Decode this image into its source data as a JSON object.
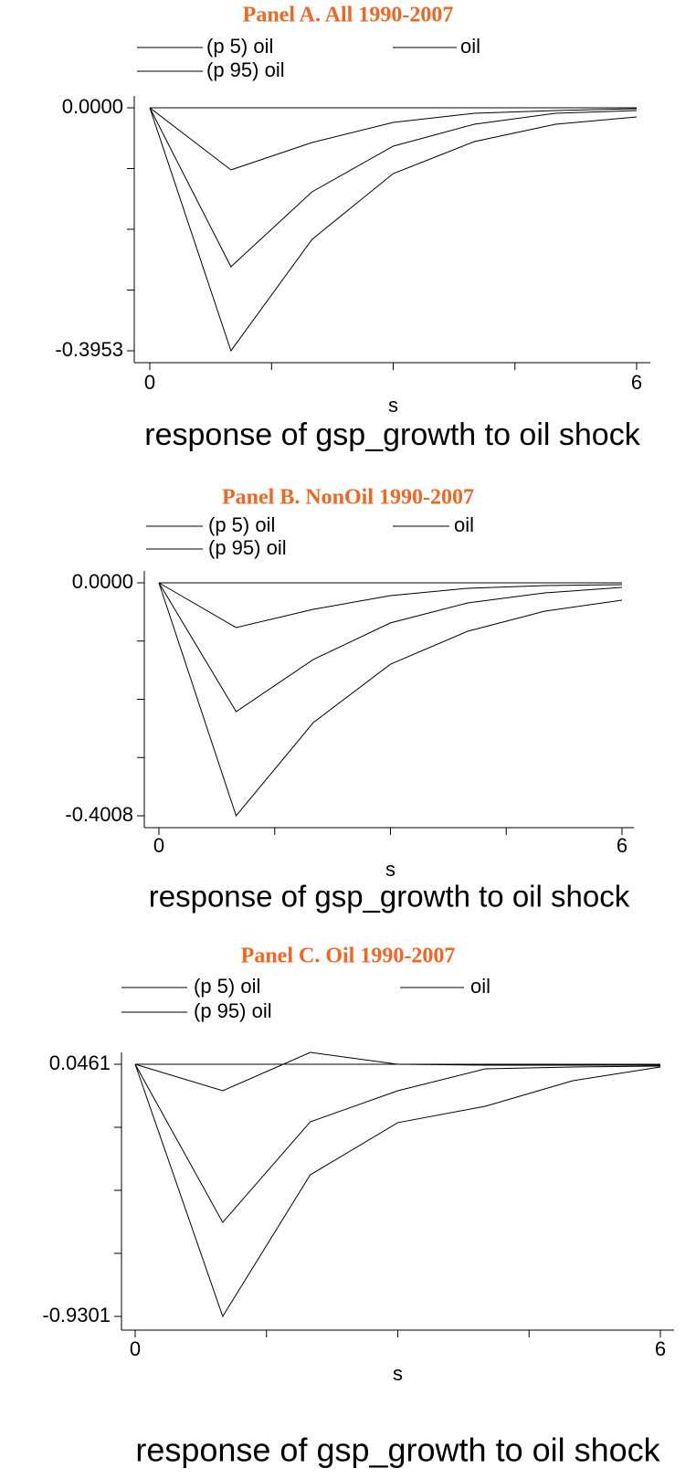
{
  "chart_data": [
    {
      "type": "line",
      "title": "Panel A. All 1990-2007",
      "x_label": "s",
      "caption": "response of gsp_growth to oil shock",
      "x": [
        0,
        1,
        2,
        3,
        4,
        5,
        6
      ],
      "xlim": [
        0,
        6
      ],
      "xticks": [
        0,
        6
      ],
      "ylim": [
        -0.3953,
        0
      ],
      "yticks": [
        {
          "value": 0,
          "label": "0.0000"
        },
        {
          "value": -0.3953,
          "label": "-0.3953"
        }
      ],
      "hline": 0,
      "series": [
        {
          "name": "(p 5) oil",
          "color": "#000000",
          "values": [
            0,
            -0.3953,
            -0.214,
            -0.107,
            -0.055,
            -0.0267,
            -0.0149
          ]
        },
        {
          "name": "oil",
          "color": "#000000",
          "values": [
            0,
            -0.2586,
            -0.1367,
            -0.0624,
            -0.0267,
            -0.0089,
            -0.0045
          ]
        },
        {
          "name": "(p 95) oil",
          "color": "#000000",
          "values": [
            0,
            -0.101,
            -0.0565,
            -0.0238,
            -0.0089,
            -0.0045,
            -0.0015
          ]
        }
      ]
    },
    {
      "type": "line",
      "title": "Panel B. NonOil 1990-2007",
      "x_label": "s",
      "caption": "response of gsp_growth to oil shock",
      "x": [
        0,
        1,
        2,
        3,
        4,
        5,
        6
      ],
      "xlim": [
        0,
        6
      ],
      "xticks": [
        0,
        6
      ],
      "ylim": [
        -0.4008,
        0
      ],
      "yticks": [
        {
          "value": 0,
          "label": "0.0000"
        },
        {
          "value": -0.4008,
          "label": "-0.4008"
        }
      ],
      "hline": 0,
      "series": [
        {
          "name": "(p 5) oil",
          "color": "#000000",
          "values": [
            0,
            -0.4008,
            -0.2405,
            -0.14,
            -0.0833,
            -0.0487,
            -0.0299
          ]
        },
        {
          "name": "oil",
          "color": "#000000",
          "values": [
            0,
            -0.2216,
            -0.132,
            -0.069,
            -0.0346,
            -0.0173,
            -0.0079
          ]
        },
        {
          "name": "(p 95) oil",
          "color": "#000000",
          "values": [
            0,
            -0.077,
            -0.0456,
            -0.022,
            -0.0094,
            -0.0047,
            -0.0031
          ]
        }
      ]
    },
    {
      "type": "line",
      "title": "Panel C. Oil 1990-2007",
      "x_label": "s",
      "caption": "response of gsp_growth to oil shock",
      "x": [
        0,
        1,
        2,
        3,
        4,
        5,
        6
      ],
      "xlim": [
        0,
        6
      ],
      "xticks": [
        0,
        6
      ],
      "ylim": [
        -0.9301,
        0.0461
      ],
      "yticks": [
        0.0461,
        -0.9301
      ],
      "hline": 0.0461,
      "series": [
        {
          "name": "(p 5) oil",
          "color": "#000000",
          "values": [
            0.0461,
            -0.9301,
            -0.382,
            -0.18,
            -0.1166,
            -0.0176,
            0.0355
          ]
        },
        {
          "name": "oil",
          "color": "#000000",
          "values": [
            0.0461,
            -0.566,
            -0.177,
            -0.0565,
            0.0284,
            0.0355,
            0.039
          ]
        },
        {
          "name": "(p 95) oil",
          "color": "#000000",
          "values": [
            0.0461,
            -0.0565,
            0.092,
            0.0461,
            0.0426,
            0.0426,
            0.0426
          ]
        }
      ]
    }
  ]
}
